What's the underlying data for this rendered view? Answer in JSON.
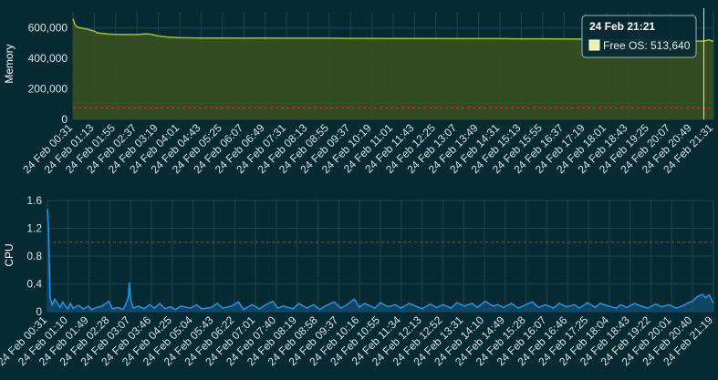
{
  "colors": {
    "background": "#062a33",
    "memory_line": "#a9c21b",
    "memory_fill": "#36511f",
    "cpu_line": "#1f95e6",
    "cpu_fill": "#154d70",
    "threshold": "#c0392b",
    "grid": "#1d4650",
    "tooltip_bg": "#062a33",
    "tooltip_border": "#9fb6bb",
    "swatch": "#f1f1a6",
    "crosshair": "#d8e2e6"
  },
  "chart_data": [
    {
      "type": "area",
      "ylabel": "Memory",
      "xlabel": "",
      "ylim": [
        0,
        700000
      ],
      "yticks": [
        0,
        200000,
        400000,
        600000
      ],
      "ytick_labels": [
        "0",
        "200,000",
        "400,000",
        "600,000"
      ],
      "grid": true,
      "x_tick_labels": [
        "24 Feb 00:31",
        "24 Feb 01:13",
        "24 Feb 01:55",
        "24 Feb 02:37",
        "24 Feb 03:19",
        "24 Feb 04:01",
        "24 Feb 04:43",
        "24 Feb 05:25",
        "24 Feb 06:07",
        "24 Feb 06:49",
        "24 Feb 07:31",
        "24 Feb 08:13",
        "24 Feb 08:55",
        "24 Feb 09:37",
        "24 Feb 10:19",
        "24 Feb 11:01",
        "24 Feb 11:43",
        "24 Feb 12:25",
        "24 Feb 13:07",
        "24 Feb 13:49",
        "24 Feb 14:31",
        "24 Feb 15:13",
        "24 Feb 15:55",
        "24 Feb 16:37",
        "24 Feb 17:19",
        "24 Feb 18:01",
        "24 Feb 18:43",
        "24 Feb 19:25",
        "24 Feb 20:07",
        "24 Feb 20:49",
        "24 Feb 21:31"
      ],
      "threshold": 75000,
      "series": [
        {
          "name": "Free OS",
          "x": [
            "00:31",
            "00:35",
            "00:40",
            "00:50",
            "01:00",
            "01:13",
            "01:20",
            "01:30",
            "01:40",
            "01:55",
            "02:10",
            "02:37",
            "02:50",
            "03:00",
            "03:10",
            "03:19",
            "03:40",
            "04:01",
            "04:43",
            "05:25",
            "06:07",
            "06:49",
            "07:31",
            "08:13",
            "08:55",
            "09:37",
            "10:19",
            "11:01",
            "11:43",
            "12:25",
            "13:07",
            "13:49",
            "14:31",
            "15:13",
            "15:55",
            "16:37",
            "17:19",
            "18:01",
            "18:43",
            "19:25",
            "20:07",
            "20:49",
            "21:21",
            "21:31",
            "21:40"
          ],
          "values": [
            660000,
            620000,
            605000,
            598000,
            592000,
            580000,
            568000,
            565000,
            560000,
            558000,
            557000,
            557000,
            560000,
            562000,
            556000,
            548000,
            540000,
            536000,
            534000,
            534000,
            533000,
            534000,
            533000,
            533000,
            533000,
            532000,
            532000,
            531000,
            531000,
            531000,
            530000,
            530000,
            530000,
            529000,
            529000,
            528000,
            527000,
            524000,
            522000,
            520000,
            518000,
            516000,
            513640,
            522000,
            512000
          ]
        }
      ]
    },
    {
      "type": "area",
      "ylabel": "CPU",
      "xlabel": "",
      "ylim": [
        0,
        1.6
      ],
      "yticks": [
        0,
        0.4,
        0.8,
        1.2,
        1.6
      ],
      "ytick_labels": [
        "0",
        "0.4",
        "0.8",
        "1.2",
        "1.6"
      ],
      "grid": true,
      "x_tick_labels": [
        "24 Feb 00:31",
        "24 Feb 01:10",
        "24 Feb 01:49",
        "24 Feb 02:28",
        "24 Feb 03:07",
        "24 Feb 03:46",
        "24 Feb 04:25",
        "24 Feb 05:04",
        "24 Feb 05:43",
        "24 Feb 06:22",
        "24 Feb 07:01",
        "24 Feb 07:40",
        "24 Feb 08:19",
        "24 Feb 08:58",
        "24 Feb 09:37",
        "24 Feb 10:16",
        "24 Feb 10:55",
        "24 Feb 11:34",
        "24 Feb 12:13",
        "24 Feb 12:52",
        "24 Feb 13:31",
        "24 Feb 14:10",
        "24 Feb 14:49",
        "24 Feb 15:28",
        "24 Feb 16:07",
        "24 Feb 16:46",
        "24 Feb 17:25",
        "24 Feb 18:04",
        "24 Feb 18:43",
        "24 Feb 19:22",
        "24 Feb 20:01",
        "24 Feb 20:40",
        "24 Feb 21:19"
      ],
      "threshold": 1.0,
      "series": [
        {
          "name": "CPU",
          "x": [
            "00:31",
            "00:33",
            "00:36",
            "00:40",
            "00:45",
            "00:50",
            "00:55",
            "01:00",
            "01:05",
            "01:10",
            "01:15",
            "01:20",
            "01:30",
            "01:40",
            "01:49",
            "01:55",
            "02:05",
            "02:15",
            "02:28",
            "02:35",
            "02:45",
            "02:55",
            "03:00",
            "03:05",
            "03:07",
            "03:10",
            "03:15",
            "03:25",
            "03:35",
            "03:46",
            "03:55",
            "04:05",
            "04:15",
            "04:25",
            "04:35",
            "04:45",
            "05:04",
            "05:15",
            "05:25",
            "05:43",
            "05:55",
            "06:05",
            "06:22",
            "06:35",
            "06:45",
            "07:01",
            "07:15",
            "07:25",
            "07:40",
            "07:50",
            "08:00",
            "08:19",
            "08:30",
            "08:45",
            "08:58",
            "09:10",
            "09:20",
            "09:37",
            "09:50",
            "10:00",
            "10:16",
            "10:25",
            "10:35",
            "10:55",
            "11:05",
            "11:20",
            "11:34",
            "11:45",
            "12:00",
            "12:13",
            "12:25",
            "12:40",
            "12:52",
            "13:05",
            "13:20",
            "13:31",
            "13:45",
            "14:00",
            "14:10",
            "14:25",
            "14:40",
            "14:49",
            "15:00",
            "15:15",
            "15:28",
            "15:40",
            "15:55",
            "16:07",
            "16:20",
            "16:35",
            "16:46",
            "17:00",
            "17:15",
            "17:25",
            "17:40",
            "17:55",
            "18:04",
            "18:20",
            "18:35",
            "18:43",
            "18:55",
            "19:10",
            "19:22",
            "19:35",
            "19:50",
            "20:01",
            "20:15",
            "20:30",
            "20:40",
            "20:50",
            "21:00",
            "21:10",
            "21:19",
            "21:25",
            "21:32",
            "21:40"
          ],
          "values": [
            1.48,
            1.2,
            0.2,
            0.1,
            0.18,
            0.12,
            0.06,
            0.14,
            0.08,
            0.04,
            0.12,
            0.05,
            0.09,
            0.04,
            0.08,
            0.03,
            0.06,
            0.08,
            0.15,
            0.04,
            0.06,
            0.03,
            0.1,
            0.2,
            0.42,
            0.15,
            0.05,
            0.08,
            0.04,
            0.1,
            0.05,
            0.12,
            0.04,
            0.07,
            0.03,
            0.08,
            0.05,
            0.1,
            0.04,
            0.06,
            0.12,
            0.05,
            0.08,
            0.14,
            0.03,
            0.1,
            0.04,
            0.09,
            0.15,
            0.05,
            0.08,
            0.04,
            0.12,
            0.05,
            0.1,
            0.03,
            0.08,
            0.14,
            0.05,
            0.09,
            0.18,
            0.06,
            0.12,
            0.05,
            0.13,
            0.07,
            0.1,
            0.05,
            0.12,
            0.08,
            0.04,
            0.11,
            0.06,
            0.1,
            0.05,
            0.13,
            0.08,
            0.12,
            0.06,
            0.15,
            0.08,
            0.1,
            0.06,
            0.12,
            0.05,
            0.09,
            0.14,
            0.06,
            0.1,
            0.05,
            0.12,
            0.07,
            0.1,
            0.05,
            0.13,
            0.06,
            0.12,
            0.08,
            0.05,
            0.1,
            0.06,
            0.12,
            0.08,
            0.05,
            0.11,
            0.07,
            0.1,
            0.05,
            0.08,
            0.12,
            0.15,
            0.22,
            0.25,
            0.2,
            0.24,
            0.12
          ]
        }
      ]
    }
  ],
  "tooltip": {
    "title": "24 Feb 21:21",
    "text": "Free OS: 513,640",
    "x": "21:21"
  }
}
